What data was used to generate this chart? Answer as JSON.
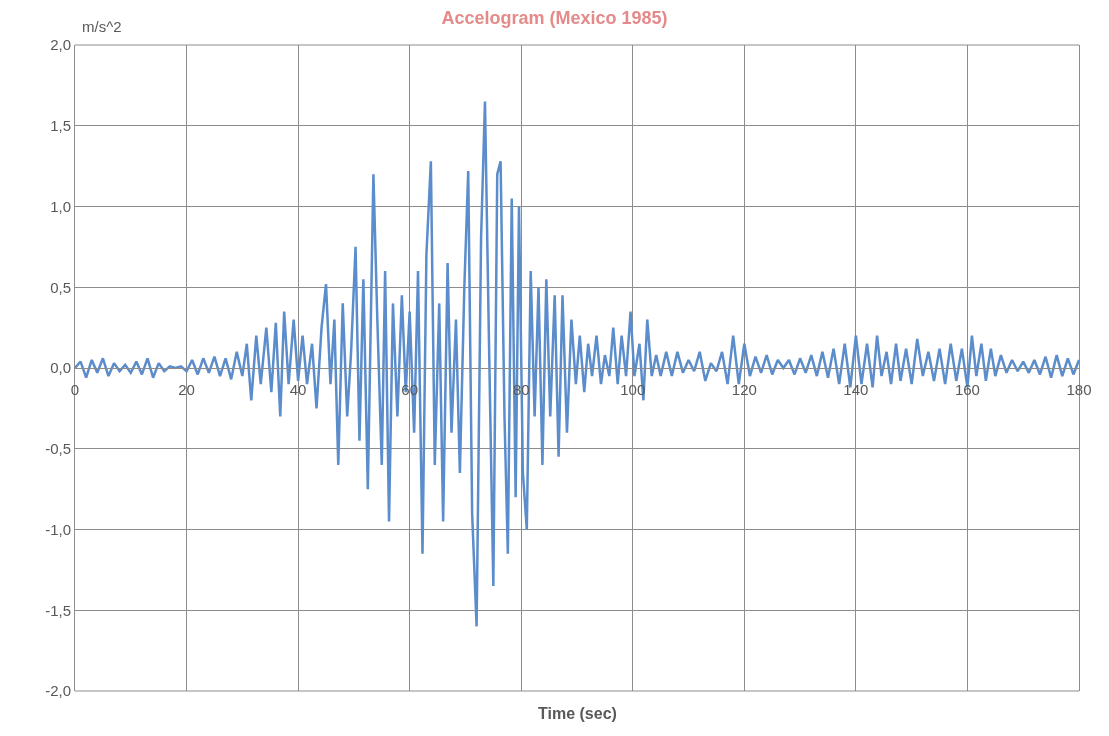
{
  "chart_data": {
    "type": "line",
    "title": "Accelogram (Mexico 1985)",
    "xlabel": "Time (sec)",
    "ylabel": "m/s^2",
    "x": [
      0,
      1,
      2,
      3,
      4,
      5,
      6,
      7,
      8,
      9,
      10,
      11,
      12,
      13,
      14,
      15,
      16,
      17,
      18,
      19,
      20,
      21,
      22,
      23,
      24,
      25,
      26,
      27,
      28,
      29,
      30,
      30.8,
      31.6,
      32.5,
      33.3,
      34.3,
      35.2,
      36,
      36.8,
      37.5,
      38.3,
      39.2,
      40,
      40.8,
      41.6,
      42.5,
      43.3,
      44.2,
      45,
      45.8,
      46.5,
      47.2,
      48,
      48.8,
      49.5,
      50.3,
      51,
      51.7,
      52.5,
      53.5,
      54.2,
      55,
      55.6,
      56.3,
      57,
      57.8,
      58.6,
      59.3,
      60,
      60.8,
      61.5,
      62.3,
      63,
      63.8,
      64.5,
      65.3,
      66,
      66.8,
      67.5,
      68.3,
      69,
      69.8,
      70.5,
      71.2,
      72,
      72.8,
      73.5,
      74.2,
      75,
      75.7,
      76.3,
      77,
      77.6,
      78.3,
      79,
      79.6,
      80.3,
      81,
      81.7,
      82.4,
      83.1,
      83.8,
      84.5,
      85.2,
      86,
      86.7,
      87.4,
      88.2,
      89,
      89.8,
      90.5,
      91.3,
      92,
      92.7,
      93.5,
      94.3,
      95,
      95.8,
      96.5,
      97.3,
      98,
      98.8,
      99.6,
      100.3,
      101.2,
      101.9,
      102.6,
      103.4,
      104.2,
      105,
      106,
      107,
      108,
      109,
      110,
      111,
      112,
      113,
      114,
      115,
      116,
      117,
      118,
      119,
      120,
      121,
      122,
      123,
      124,
      125,
      126,
      127,
      128,
      129,
      130,
      131,
      132,
      133,
      134,
      135,
      136,
      137,
      138,
      139,
      140,
      141,
      142,
      143,
      143.8,
      144.6,
      145.5,
      146.3,
      147.2,
      148,
      149,
      150,
      151,
      152,
      153,
      154,
      155,
      156,
      157,
      158,
      159,
      160,
      160.8,
      161.6,
      162.5,
      163.3,
      164.2,
      165,
      166,
      167,
      168,
      169,
      170,
      171,
      172,
      173,
      174,
      175,
      176,
      177,
      178,
      179,
      180
    ],
    "series": [
      {
        "color": "#5b8ccb",
        "values": [
          0,
          0.04,
          -0.06,
          0.05,
          -0.03,
          0.06,
          -0.05,
          0.03,
          -0.02,
          0.02,
          -0.03,
          0.04,
          -0.04,
          0.06,
          -0.06,
          0.03,
          -0.02,
          0.01,
          0,
          0.01,
          -0.02,
          0.05,
          -0.04,
          0.06,
          -0.03,
          0.07,
          -0.05,
          0.06,
          -0.07,
          0.1,
          -0.05,
          0.15,
          -0.2,
          0.2,
          -0.1,
          0.25,
          -0.15,
          0.28,
          -0.3,
          0.35,
          -0.1,
          0.3,
          -0.08,
          0.2,
          -0.1,
          0.15,
          -0.25,
          0.25,
          0.52,
          -0.1,
          0.3,
          -0.6,
          0.4,
          -0.3,
          0.1,
          0.75,
          -0.45,
          0.55,
          -0.75,
          1.2,
          0.3,
          -0.6,
          0.6,
          -0.95,
          0.4,
          -0.3,
          0.45,
          -0.15,
          0.35,
          -0.4,
          0.6,
          -1.15,
          0.7,
          1.28,
          -0.6,
          0.4,
          -0.95,
          0.65,
          -0.4,
          0.3,
          -0.65,
          0.5,
          1.22,
          -0.9,
          -1.6,
          0.8,
          1.65,
          0.2,
          -1.35,
          1.2,
          1.28,
          -0.3,
          -1.15,
          1.05,
          -0.8,
          1.0,
          -0.65,
          -1.0,
          0.6,
          -0.3,
          0.5,
          -0.6,
          0.55,
          -0.3,
          0.45,
          -0.55,
          0.45,
          -0.4,
          0.3,
          -0.1,
          0.2,
          -0.15,
          0.15,
          -0.05,
          0.2,
          -0.1,
          0.08,
          -0.05,
          0.25,
          -0.1,
          0.2,
          -0.05,
          0.35,
          -0.05,
          0.15,
          -0.2,
          0.3,
          -0.05,
          0.08,
          -0.05,
          0.1,
          -0.05,
          0.1,
          -0.03,
          0.05,
          -0.02,
          0.1,
          -0.08,
          0.03,
          -0.02,
          0.1,
          -0.1,
          0.2,
          -0.1,
          0.15,
          -0.05,
          0.07,
          -0.03,
          0.08,
          -0.04,
          0.05,
          0,
          0.05,
          -0.04,
          0.06,
          -0.03,
          0.08,
          -0.05,
          0.1,
          -0.06,
          0.12,
          -0.1,
          0.15,
          -0.12,
          0.2,
          -0.1,
          0.15,
          -0.12,
          0.2,
          -0.05,
          0.1,
          -0.1,
          0.15,
          -0.08,
          0.12,
          -0.1,
          0.18,
          -0.05,
          0.1,
          -0.08,
          0.12,
          -0.1,
          0.15,
          -0.08,
          0.12,
          -0.12,
          0.2,
          -0.05,
          0.15,
          -0.08,
          0.12,
          -0.05,
          0.08,
          -0.03,
          0.05,
          -0.02,
          0.04,
          -0.03,
          0.05,
          -0.04,
          0.07,
          -0.06,
          0.08,
          -0.05,
          0.06,
          -0.04,
          0.05
        ]
      }
    ],
    "xlim": [
      0,
      180
    ],
    "xticks": [
      0,
      20,
      40,
      60,
      80,
      100,
      120,
      140,
      160,
      180
    ],
    "ylim": [
      -2,
      2
    ],
    "yticks": [
      {
        "value": -2,
        "label": "-2,0"
      },
      {
        "value": -1.5,
        "label": "-1,5"
      },
      {
        "value": -1,
        "label": "-1,0"
      },
      {
        "value": -0.5,
        "label": "-0,5"
      },
      {
        "value": 0,
        "label": "0,0"
      },
      {
        "value": 0.5,
        "label": "0,5"
      },
      {
        "value": 1,
        "label": "1,0"
      },
      {
        "value": 1.5,
        "label": "1,5"
      },
      {
        "value": 2,
        "label": "2,0"
      }
    ],
    "grid": true,
    "marker": "none",
    "line_style": "solid"
  }
}
